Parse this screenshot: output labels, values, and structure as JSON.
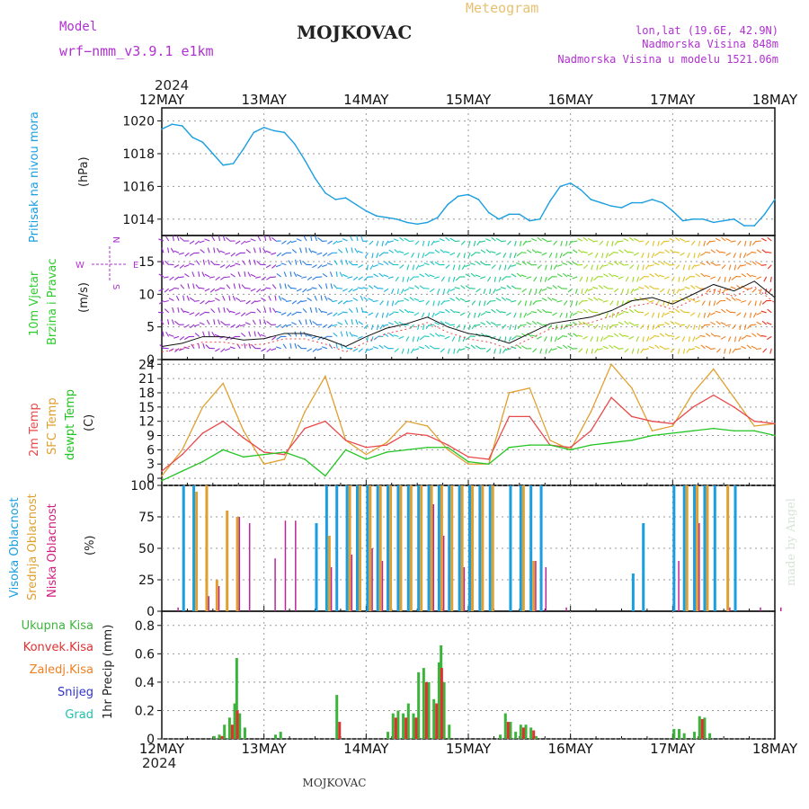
{
  "header": {
    "model_label": "Model",
    "model_name": "wrf−nmm_v3.9.1 e1km",
    "station": "MOJKOVAC",
    "product": "Meteogram",
    "lonlat": "lon,lat (19.6E, 42.9N)",
    "altitude": "Nadmorska Visina 848m",
    "model_altitude": "Nadmorska Visina u modelu 1521.06m",
    "year_top": "2024",
    "year_bottom": "2024",
    "footer_station": "MOJKOVAC",
    "watermark": "made by Angel"
  },
  "colors": {
    "pressure": "#1a9ee0",
    "wind_label": "#2ecc2e",
    "temp2m": "#e84a4a",
    "sfc_temp": "#e0a030",
    "dewpoint": "#22c422",
    "cloud_high": "#1a9ee0",
    "cloud_mid": "#e0a030",
    "cloud_low": "#b8279a",
    "precip_total": "#3cb43c",
    "precip_conv": "#e03030",
    "precip_frz": "#f08020",
    "precip_snow": "#3030d0",
    "precip_hail": "#20c0b0",
    "header_purple": "#b030d0",
    "header_gold": "#e8c070"
  },
  "chart_data": [
    {
      "type": "line",
      "title": "",
      "ylabel": "Pritisak na nivou mora",
      "unit": "(hPa)",
      "ylim": [
        1013,
        1020.8
      ],
      "yticks": [
        1014,
        1016,
        1018,
        1020
      ],
      "x_labels": [
        "12MAY",
        "13MAY",
        "14MAY",
        "15MAY",
        "16MAY",
        "17MAY",
        "18MAY"
      ],
      "series": [
        {
          "x": [
            0,
            0.1,
            0.2,
            0.3,
            0.4,
            0.5,
            0.6,
            0.7,
            0.8,
            0.9,
            1.0,
            1.1,
            1.2,
            1.3,
            1.4,
            1.5,
            1.6,
            1.7,
            1.8,
            1.9,
            2.0,
            2.1,
            2.2,
            2.3,
            2.4,
            2.5,
            2.6,
            2.7,
            2.8,
            2.9,
            3.0,
            3.1,
            3.2,
            3.3,
            3.4,
            3.5,
            3.6,
            3.7,
            3.8,
            3.9,
            4.0,
            4.1,
            4.2,
            4.3,
            4.4,
            4.5,
            4.6,
            4.7,
            4.8,
            4.9,
            5.0,
            5.1,
            5.2,
            5.3,
            5.4,
            5.5,
            5.6,
            5.7,
            5.8,
            5.9,
            6.0
          ],
          "y": [
            1019.5,
            1019.8,
            1019.7,
            1019.0,
            1018.7,
            1018.0,
            1017.3,
            1017.4,
            1018.3,
            1019.3,
            1019.6,
            1019.4,
            1019.3,
            1018.6,
            1017.6,
            1016.5,
            1015.6,
            1015.2,
            1015.3,
            1014.9,
            1014.5,
            1014.2,
            1014.1,
            1014.0,
            1013.8,
            1013.7,
            1013.8,
            1014.1,
            1014.9,
            1015.4,
            1015.5,
            1015.2,
            1014.4,
            1014.0,
            1014.3,
            1014.3,
            1013.9,
            1014.0,
            1015.1,
            1016.0,
            1016.2,
            1015.8,
            1015.2,
            1015.0,
            1014.8,
            1014.7,
            1015.0,
            1015.0,
            1015.2,
            1015.0,
            1014.5,
            1013.9,
            1014.0,
            1014.0,
            1013.8,
            1013.9,
            1014.0,
            1013.6,
            1013.6,
            1014.3,
            1015.2
          ]
        }
      ]
    },
    {
      "type": "line",
      "title": "",
      "ylabel": "10m Vjetar Brzina i Pravac",
      "unit": "(m/s)",
      "ylim": [
        0,
        19
      ],
      "yticks": [
        0,
        5,
        10,
        15
      ],
      "compass": {
        "n": "N",
        "s": "S",
        "e": "E",
        "w": "W"
      },
      "series": [
        {
          "name": "speed",
          "x": [
            0,
            0.2,
            0.4,
            0.6,
            0.8,
            1.0,
            1.2,
            1.4,
            1.6,
            1.8,
            2.0,
            2.2,
            2.4,
            2.6,
            2.8,
            3.0,
            3.2,
            3.4,
            3.6,
            3.8,
            4.0,
            4.2,
            4.4,
            4.6,
            4.8,
            5.0,
            5.2,
            5.4,
            5.6,
            5.8,
            6.0
          ],
          "y": [
            2.0,
            2.5,
            3.5,
            3.5,
            3.0,
            3.2,
            4.0,
            4.0,
            3.2,
            2.0,
            3.5,
            4.8,
            5.5,
            6.5,
            5.0,
            4.0,
            3.5,
            2.5,
            4.0,
            5.5,
            6.0,
            6.5,
            7.5,
            9.0,
            9.5,
            8.5,
            10.0,
            11.5,
            10.5,
            12.0,
            9.5
          ]
        }
      ]
    },
    {
      "type": "line",
      "title": "",
      "ylabel": "2m Temp / SFC Temp / dewpt Temp",
      "unit": "(C)",
      "ylim": [
        -1.5,
        25
      ],
      "yticks": [
        0,
        3,
        6,
        9,
        12,
        15,
        18,
        21,
        24
      ],
      "series": [
        {
          "name": "2m Temp",
          "x": [
            0,
            0.2,
            0.4,
            0.6,
            0.8,
            1.0,
            1.2,
            1.4,
            1.6,
            1.8,
            2.0,
            2.2,
            2.4,
            2.6,
            2.8,
            3.0,
            3.2,
            3.4,
            3.6,
            3.8,
            4.0,
            4.2,
            4.4,
            4.6,
            4.8,
            5.0,
            5.2,
            5.4,
            5.6,
            5.8,
            6.0
          ],
          "y": [
            1.5,
            5.0,
            9.5,
            12.0,
            8.5,
            5.5,
            5.0,
            10.5,
            12.0,
            8.0,
            6.5,
            7.0,
            9.5,
            9.0,
            7.0,
            4.5,
            4.0,
            13.0,
            13.0,
            7.0,
            6.5,
            10.0,
            17.0,
            13.0,
            12.0,
            11.5,
            15.0,
            17.5,
            15.0,
            12.0,
            11.5
          ]
        },
        {
          "name": "SFC Temp",
          "x": [
            0,
            0.2,
            0.4,
            0.6,
            0.8,
            1.0,
            1.2,
            1.4,
            1.6,
            1.8,
            2.0,
            2.2,
            2.4,
            2.6,
            2.8,
            3.0,
            3.2,
            3.4,
            3.6,
            3.8,
            4.0,
            4.2,
            4.4,
            4.6,
            4.8,
            5.0,
            5.2,
            5.4,
            5.6,
            5.8,
            6.0
          ],
          "y": [
            0.5,
            6.0,
            15.0,
            20.0,
            10.0,
            3.0,
            4.0,
            14.0,
            21.5,
            8.0,
            5.0,
            7.5,
            12.0,
            11.0,
            6.0,
            3.0,
            3.0,
            18.0,
            19.0,
            8.0,
            6.0,
            14.0,
            24.0,
            19.0,
            10.0,
            11.0,
            18.0,
            23.0,
            17.0,
            11.0,
            11.5
          ]
        },
        {
          "name": "dewpt Temp",
          "x": [
            0,
            0.2,
            0.4,
            0.6,
            0.8,
            1.0,
            1.2,
            1.4,
            1.6,
            1.8,
            2.0,
            2.2,
            2.4,
            2.6,
            2.8,
            3.0,
            3.2,
            3.4,
            3.6,
            3.8,
            4.0,
            4.2,
            4.4,
            4.6,
            4.8,
            5.0,
            5.2,
            5.4,
            5.6,
            5.8,
            6.0
          ],
          "y": [
            -0.5,
            1.5,
            3.5,
            6.0,
            4.5,
            5.0,
            5.5,
            4.0,
            0.5,
            6.0,
            4.0,
            5.5,
            6.0,
            6.5,
            6.5,
            3.5,
            3.0,
            6.5,
            7.0,
            7.0,
            6.0,
            7.0,
            7.5,
            8.0,
            9.0,
            9.5,
            10.0,
            10.5,
            10.0,
            10.0,
            9.0
          ]
        }
      ]
    },
    {
      "type": "bar",
      "title": "",
      "ylabel": "Visoka Oblacnost / Srednja Oblacnost / Niska Oblacnost",
      "unit": "(%)",
      "ylim": [
        0,
        100
      ],
      "yticks": [
        0,
        25,
        50,
        75,
        100
      ],
      "series": [
        {
          "name": "Visoka Oblacnost",
          "x": [
            0.2,
            0.3,
            1.5,
            1.6,
            1.7,
            1.8,
            1.9,
            2.0,
            2.1,
            2.2,
            2.3,
            2.4,
            2.5,
            2.6,
            2.7,
            2.8,
            2.9,
            3.0,
            3.1,
            3.2,
            3.4,
            3.5,
            3.6,
            3.7,
            4.6,
            4.7,
            5.0,
            5.1,
            5.2,
            5.3,
            5.4,
            5.6
          ],
          "y": [
            100,
            100,
            70,
            100,
            100,
            100,
            100,
            100,
            100,
            100,
            100,
            100,
            100,
            100,
            100,
            100,
            100,
            100,
            100,
            100,
            100,
            100,
            100,
            100,
            30,
            70,
            100,
            100,
            100,
            100,
            100,
            100
          ]
        },
        {
          "name": "Srednja Oblacnost",
          "x": [
            0.3,
            0.4,
            0.5,
            0.6,
            0.7,
            1.6,
            1.8,
            1.9,
            2.0,
            2.1,
            2.2,
            2.3,
            2.4,
            2.5,
            2.6,
            2.7,
            2.8,
            2.9,
            3.0,
            3.1,
            3.2,
            3.5,
            3.6,
            5.1,
            5.2,
            5.3,
            5.5
          ],
          "y": [
            95,
            100,
            25,
            80,
            75,
            60,
            100,
            100,
            100,
            100,
            100,
            100,
            100,
            100,
            100,
            100,
            100,
            100,
            100,
            100,
            100,
            100,
            40,
            100,
            100,
            100,
            100
          ]
        },
        {
          "name": "Niska Oblacnost",
          "x": [
            0.1,
            0.4,
            0.5,
            0.7,
            0.8,
            1.05,
            1.15,
            1.25,
            1.6,
            1.8,
            2.0,
            2.1,
            2.6,
            2.7,
            2.9,
            3.6,
            3.7,
            3.9,
            5.0,
            5.2,
            5.5,
            5.8,
            6.0
          ],
          "y": [
            3,
            12,
            20,
            75,
            70,
            42,
            72,
            72,
            35,
            45,
            50,
            40,
            85,
            60,
            35,
            40,
            35,
            3,
            40,
            70,
            3,
            3,
            3
          ]
        }
      ]
    },
    {
      "type": "bar",
      "title": "",
      "ylabel": "1hr Precip",
      "unit": "(mm)",
      "ylim": [
        0,
        0.9
      ],
      "yticks": [
        0,
        0.2,
        0.4,
        0.6,
        0.8
      ],
      "series": [
        {
          "name": "Ukupna Kisa",
          "x": [
            0.5,
            0.55,
            0.6,
            0.65,
            0.7,
            0.72,
            0.75,
            0.8,
            1.1,
            1.15,
            1.7,
            2.2,
            2.25,
            2.3,
            2.35,
            2.4,
            2.45,
            2.5,
            2.55,
            2.6,
            2.65,
            2.7,
            2.72,
            2.75,
            2.8,
            3.3,
            3.35,
            3.4,
            3.45,
            3.5,
            3.55,
            3.6,
            3.65,
            5.0,
            5.05,
            5.1,
            5.2,
            5.25,
            5.3,
            5.35
          ],
          "y": [
            0.02,
            0.03,
            0.1,
            0.15,
            0.25,
            0.57,
            0.18,
            0.08,
            0.03,
            0.05,
            0.31,
            0.05,
            0.18,
            0.2,
            0.18,
            0.25,
            0.18,
            0.47,
            0.5,
            0.4,
            0.28,
            0.54,
            0.66,
            0.4,
            0.1,
            0.03,
            0.18,
            0.12,
            0.05,
            0.1,
            0.1,
            0.08,
            0.02,
            0.07,
            0.07,
            0.04,
            0.05,
            0.16,
            0.15,
            0.04
          ]
        },
        {
          "name": "Konvek.Kisa",
          "x": [
            0.55,
            0.65,
            0.7,
            1.7,
            2.25,
            2.35,
            2.45,
            2.55,
            2.65,
            2.7,
            3.35,
            3.5,
            3.6,
            5.25
          ],
          "y": [
            0.02,
            0.1,
            0.2,
            0.12,
            0.15,
            0.15,
            0.15,
            0.4,
            0.25,
            0.5,
            0.12,
            0.08,
            0.06,
            0.14
          ]
        },
        {
          "name": "Zaledj.Kisa",
          "x": [],
          "y": []
        },
        {
          "name": "Snijeg",
          "x": [],
          "y": []
        },
        {
          "name": "Grad",
          "x": [],
          "y": []
        }
      ]
    }
  ],
  "labels": {
    "pressure_title": "Pritisak na nivou mora",
    "pressure_unit": "(hPa)",
    "wind_title_1": "10m Vjetar",
    "wind_title_2": "Brzina i Pravac",
    "wind_unit": "(m/s)",
    "temp_2m": "2m Temp",
    "temp_sfc": "SFC Temp",
    "temp_dew": "dewpt Temp",
    "temp_unit": "(C)",
    "cloud_high": "Visoka Oblacnost",
    "cloud_mid": "Srednja Oblacnost",
    "cloud_low": "Niska Oblacnost",
    "cloud_unit": "(%)",
    "precip_total": "Ukupna Kisa",
    "precip_conv": "Konvek.Kisa",
    "precip_frz": "Zaledj.Kisa",
    "precip_snow": "Snijeg",
    "precip_hail": "Grad",
    "precip_title": "1hr Precip (mm)"
  }
}
